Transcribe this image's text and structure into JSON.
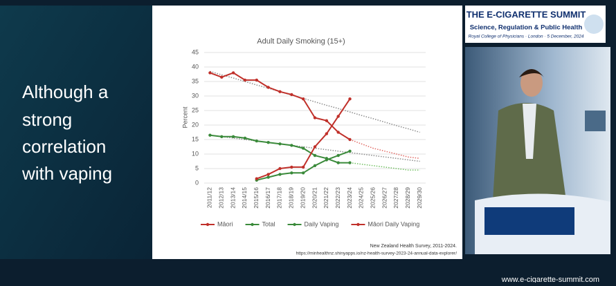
{
  "slide": {
    "heading_lines": [
      "Although a",
      "strong",
      "correlation",
      "with vaping"
    ],
    "source_lines": [
      "New Zealand Health Survey, 2011-2024.",
      "https://minhealthnz.shinyapps.io/nz-health-survey-2023-24-annual-data-explorer/"
    ],
    "website": "www.e-cigarette-summit.com"
  },
  "logo": {
    "title": "THE E-CIGARETTE SUMMIT",
    "subtitle": "Science, Regulation & Public Health",
    "venue": "Royal College of Physicians · London · 5 December, 2024"
  },
  "chart_data": {
    "type": "line",
    "title": "Adult Daily Smoking (15+)",
    "y_label": "Percent",
    "categories": [
      "2011/12",
      "2012/13",
      "2013/14",
      "2014/15",
      "2015/16",
      "2016/17",
      "2017/18",
      "2018/19",
      "2019/20",
      "2020/21",
      "2021/22",
      "2022/23",
      "2023/24",
      "2024/25",
      "2025/26",
      "2026/27",
      "2027/28",
      "2028/29",
      "2029/30"
    ],
    "ylim": [
      0,
      45
    ],
    "yticks": [
      0,
      5,
      10,
      15,
      20,
      25,
      30,
      35,
      40,
      45
    ],
    "grid": true,
    "series": [
      {
        "name": "Māori",
        "color": "#c0302a",
        "markers": true,
        "values": [
          38,
          36.5,
          38,
          35.5,
          35.5,
          33,
          31.5,
          30.5,
          29,
          22.5,
          21.5,
          17.5,
          15,
          null,
          null,
          null,
          null,
          null,
          null
        ]
      },
      {
        "name": "Total",
        "color": "#3a8a3a",
        "markers": true,
        "values": [
          16.5,
          16,
          16,
          15.5,
          14.5,
          14,
          13.5,
          13,
          12,
          9.5,
          8.5,
          7,
          7,
          null,
          null,
          null,
          null,
          null,
          null
        ]
      },
      {
        "name": "Daily Vaping",
        "color": "#3a8a3a",
        "markers": true,
        "values": [
          null,
          null,
          null,
          null,
          1,
          2,
          3,
          3.5,
          3.5,
          6,
          8,
          9.5,
          11,
          null,
          null,
          null,
          null,
          null,
          null
        ]
      },
      {
        "name": "Māori Daily Vaping",
        "color": "#c0302a",
        "markers": true,
        "values": [
          null,
          null,
          null,
          null,
          1.5,
          3,
          5,
          5.5,
          5.5,
          12.5,
          17,
          23,
          29,
          null,
          null,
          null,
          null,
          null,
          null
        ]
      },
      {
        "color": "#e06660",
        "dashed": true,
        "values": [
          null,
          null,
          null,
          null,
          null,
          null,
          null,
          null,
          null,
          null,
          null,
          null,
          15,
          13.5,
          12,
          11,
          10,
          9,
          8.5
        ]
      },
      {
        "color": "#6fbf5f",
        "dashed": true,
        "values": [
          null,
          null,
          null,
          null,
          null,
          null,
          null,
          null,
          null,
          null,
          null,
          null,
          7,
          6.5,
          6,
          5.5,
          5,
          4.5,
          4.5
        ]
      },
      {
        "color": "#8a8a8a",
        "dashed": true,
        "values": [
          38.5,
          37.3,
          36.2,
          35,
          33.8,
          32.7,
          31.5,
          30.3,
          29.2,
          28,
          26.8,
          25.7,
          24.5,
          23.3,
          22.2,
          21,
          19.8,
          18.7,
          17.5
        ]
      },
      {
        "color": "#8a8a8a",
        "dashed": true,
        "values": [
          16.5,
          16,
          15.5,
          15,
          14.5,
          14,
          13.5,
          13,
          12.5,
          12,
          11.5,
          11,
          10.5,
          10,
          9.5,
          9,
          8.5,
          8,
          7.5
        ]
      }
    ]
  }
}
